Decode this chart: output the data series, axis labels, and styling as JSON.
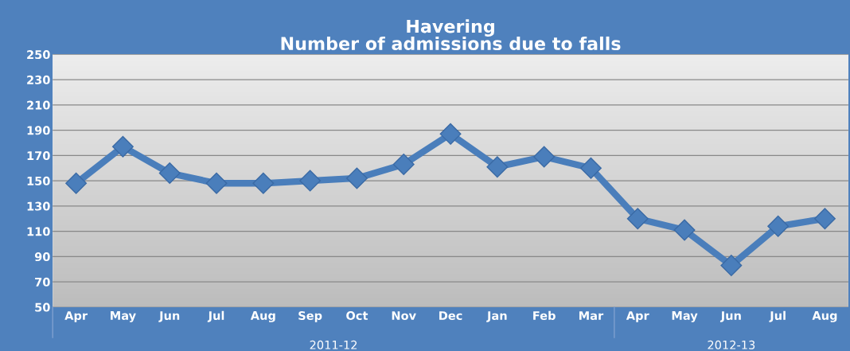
{
  "chart_data": {
    "type": "line",
    "title": "Havering\nNumber of admissions due to falls",
    "categories": [
      "Apr",
      "May",
      "Jun",
      "Jul",
      "Aug",
      "Sep",
      "Oct",
      "Nov",
      "Dec",
      "Jan",
      "Feb",
      "Mar",
      "Apr",
      "May",
      "Jun",
      "Jul",
      "Aug"
    ],
    "series": [
      {
        "color": "#4a7ebb",
        "values": [
          148,
          177,
          156,
          148,
          148,
          150,
          152,
          163,
          187,
          161,
          169,
          160,
          120,
          111,
          83,
          114,
          120
        ]
      }
    ],
    "ylim": [
      50,
      250
    ],
    "yticks": [
      50,
      70,
      90,
      110,
      130,
      150,
      170,
      190,
      210,
      230,
      250
    ],
    "grid": "y",
    "marker": "diamond",
    "line_style": "solid",
    "annotations": [
      "2011-12",
      "2012-13"
    ]
  }
}
